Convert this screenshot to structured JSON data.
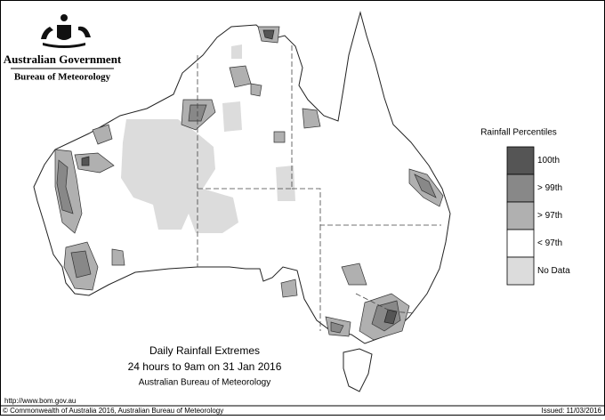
{
  "header": {
    "government": "Australian Government",
    "agency": "Bureau of Meteorology"
  },
  "legend": {
    "title": "Rainfall Percentiles",
    "items": [
      {
        "label": "100th",
        "color": "#555555"
      },
      {
        "label": "> 99th",
        "color": "#888888"
      },
      {
        "label": "> 97th",
        "color": "#b0b0b0"
      },
      {
        "label": "< 97th",
        "color": "#ffffff"
      },
      {
        "label": "No Data",
        "color": "#dcdcdc"
      }
    ]
  },
  "title": {
    "line1": "Daily Rainfall Extremes",
    "line2": "24 hours to 9am on 31 Jan 2016",
    "line3": "Australian Bureau of Meteorology"
  },
  "footer": {
    "url": "http://www.bom.gov.au",
    "copyright": "© Commonwealth of Australia 2016, Australian Bureau of Meteorology",
    "issued": "Issued: 11/03/2016"
  }
}
